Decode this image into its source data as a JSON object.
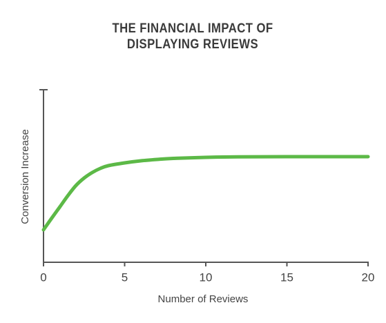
{
  "chart_data": {
    "type": "line",
    "title": [
      "THE FINANCIAL IMPACT OF",
      "DISPLAYING REVIEWS"
    ],
    "x_label": "Number of Reviews",
    "y_label": "Conversion Increase",
    "x": [
      0,
      0.5,
      1,
      1.5,
      2,
      2.5,
      3,
      3.5,
      4,
      5,
      6,
      7,
      8,
      10,
      12,
      15,
      20
    ],
    "series": [
      {
        "color": "#5cb947",
        "values": [
          18.8,
          25.5,
          32,
          38.6,
          44.5,
          48.8,
          52,
          54.4,
          56,
          57.6,
          58.8,
          59.6,
          60.2,
          60.8,
          61.1,
          61.2,
          61.2
        ]
      }
    ],
    "xlim": [
      0,
      20
    ],
    "xticks": [
      0,
      5,
      10,
      15,
      20
    ],
    "ylim": [
      0,
      100
    ]
  }
}
